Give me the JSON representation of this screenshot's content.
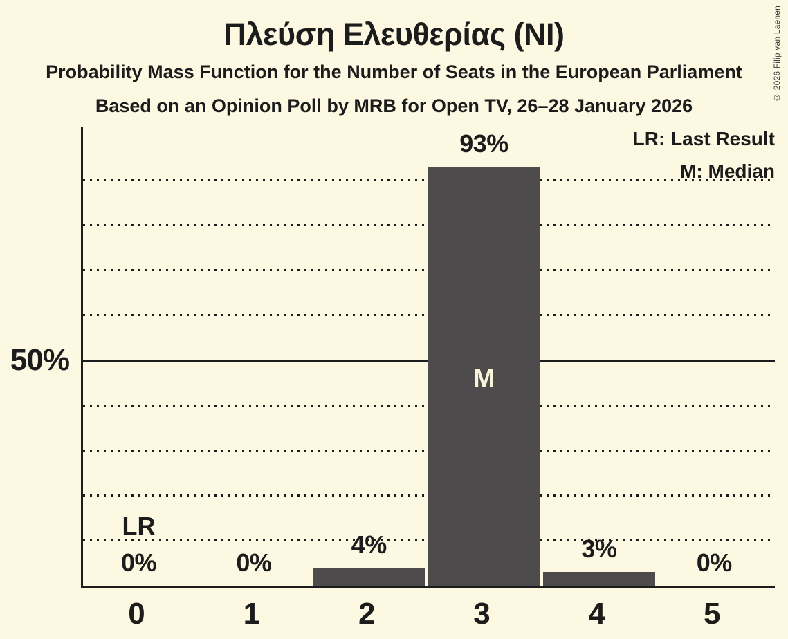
{
  "header": {
    "title": "Πλεύση Ελευθερίας (NI)",
    "subtitle": "Probability Mass Function for the Number of Seats in the European Parliament",
    "source": "Based on an Opinion Poll by MRB for Open TV, 26–28 January 2026",
    "copyright": "© 2026 Filip van Laenen"
  },
  "legend": {
    "lr": "LR: Last Result",
    "m": "M: Median"
  },
  "colors": {
    "background": "#fcf8e2",
    "bar": "#4d4b4c",
    "text": "#1c1c1c",
    "median_label": "#faf4da"
  },
  "chart_data": {
    "type": "bar",
    "title": "Πλεύση Ελευθερίας (NI)",
    "subtitle": "Probability Mass Function for the Number of Seats in the European Parliament",
    "source": "Based on an Opinion Poll by MRB for Open TV, 26–28 January 2026",
    "categories": [
      "0",
      "1",
      "2",
      "3",
      "4",
      "5"
    ],
    "values": [
      0,
      0,
      4,
      93,
      3,
      0
    ],
    "bar_labels": [
      "0%",
      "0%",
      "4%",
      "93%",
      "3%",
      "0%"
    ],
    "xlabel": "",
    "ylabel": "",
    "ylim": [
      0,
      101.8
    ],
    "y_axis": {
      "tick_label": "50%",
      "tick_value": 50,
      "gridlines_pct": [
        10,
        20,
        30,
        40,
        60,
        70,
        80,
        90
      ],
      "solid_line_pct": 50,
      "grid_style": "dotted horizontal"
    },
    "annotations": {
      "last_result": {
        "category": "0",
        "label": "LR"
      },
      "median": {
        "category": "3",
        "label": "M"
      }
    },
    "legend_entries": [
      "LR: Last Result",
      "M: Median"
    ],
    "legend_position": "top-right"
  }
}
